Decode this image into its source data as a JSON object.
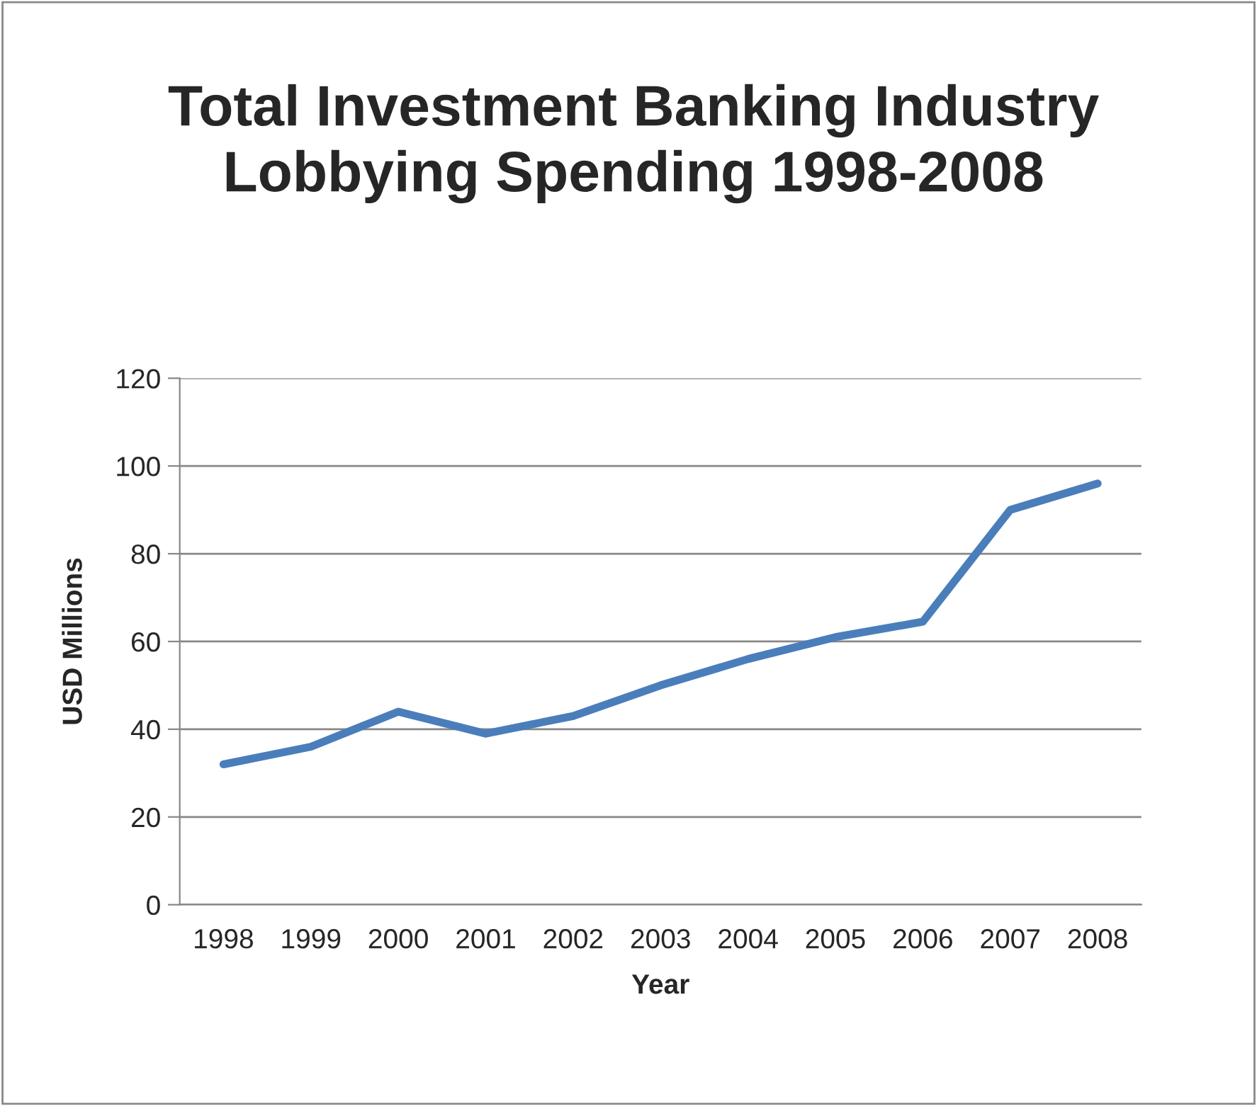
{
  "chart_data": {
    "type": "line",
    "title": "Total Investment Banking Industry\nLobbying Spending 1998-2008",
    "xlabel": "Year",
    "ylabel": "USD Millions",
    "categories": [
      "1998",
      "1999",
      "2000",
      "2001",
      "2002",
      "2003",
      "2004",
      "2005",
      "2006",
      "2007",
      "2008"
    ],
    "series": [
      {
        "color": "#4a7ebb",
        "values": [
          32,
          36,
          44,
          39,
          43,
          50,
          56,
          61,
          64.5,
          90,
          96
        ]
      }
    ],
    "ylim": [
      0,
      120
    ],
    "yticks": [
      0,
      20,
      40,
      60,
      80,
      100,
      120
    ],
    "grid": "y",
    "legend": false,
    "marker": "none",
    "line_style": "solid"
  }
}
